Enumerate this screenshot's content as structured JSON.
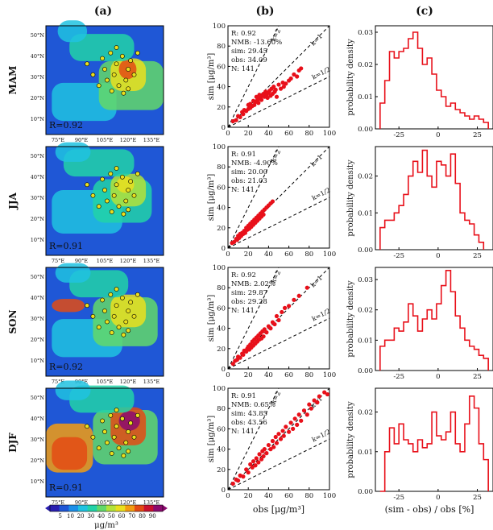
{
  "panel_labels": [
    "(a)",
    "(b)",
    "(c)"
  ],
  "colors": {
    "scatter_point": "#e8101a",
    "histogram": "#e8101a",
    "map_colors": [
      "#2a1fb0",
      "#1f57d6",
      "#1c8fe8",
      "#20c2e0",
      "#22d2a8",
      "#63d86a",
      "#b3e23a",
      "#eadf1e",
      "#f39c12",
      "#e34b14",
      "#c8102e",
      "#8b0a6e"
    ]
  },
  "map": {
    "lon_ticks": [
      "75°E",
      "90°E",
      "105°E",
      "120°E",
      "135°E"
    ],
    "lat_ticks": [
      "50°N",
      "40°N",
      "30°N",
      "20°N",
      "10°N"
    ],
    "colorbar": {
      "values": [
        5,
        10,
        20,
        30,
        40,
        50,
        60,
        70,
        80,
        90
      ],
      "unit": "μg/m³"
    }
  },
  "scatter_common": {
    "xlabel": "obs [μg/m³]",
    "ylabel": "sim [μg/m³]",
    "ticks": [
      0,
      20,
      40,
      60,
      80,
      100
    ]
  },
  "hist_common": {
    "xlabel": "(sim - obs) / obs [%]",
    "ylabel": "probability density",
    "xticks": [
      "-25",
      "0",
      "25"
    ]
  },
  "rows": [
    {
      "season": "MAM",
      "map_R": "R=0.92",
      "stats": [
        "R: 0.92",
        "NMB: -13.60%",
        "sim: 29.45",
        "obs: 34.09",
        "N: 141"
      ],
      "lines": [
        "k=2",
        "k=1",
        "k=1/2"
      ],
      "hist_yticks": [
        "0.00",
        "0.01",
        "0.02",
        "0.03"
      ]
    },
    {
      "season": "JJA",
      "map_R": "R=0.91",
      "stats": [
        "R: 0.91",
        "NMB: -4.90%",
        "sim: 20.00",
        "obs: 21.03",
        "N: 141"
      ],
      "lines": [
        "k=2",
        "k=1",
        "k=1/2"
      ],
      "hist_yticks": [
        "0.00",
        "0.01",
        "0.02"
      ]
    },
    {
      "season": "SON",
      "map_R": "R=0.92",
      "stats": [
        "R: 0.92",
        "NMB: 2.02%",
        "sim: 29.87",
        "obs: 29.28",
        "N: 141"
      ],
      "lines": [
        "k=2",
        "k=1",
        "k=1/2"
      ],
      "hist_yticks": [
        "0.00",
        "0.01",
        "0.02",
        "0.03"
      ]
    },
    {
      "season": "DJF",
      "map_R": "R=0.91",
      "stats": [
        "R: 0.91",
        "NMB: 0.65%",
        "sim: 43.85",
        "obs: 43.56",
        "N: 141"
      ],
      "lines": [
        "k=2",
        "k=1",
        "k=1/2"
      ],
      "hist_yticks": [
        "0.00",
        "0.01",
        "0.02"
      ]
    }
  ],
  "chart_data": [
    {
      "type": "scatter",
      "season": "MAM",
      "xlabel": "obs [μg/m³]",
      "ylabel": "sim [μg/m³]",
      "xlim": [
        0,
        100
      ],
      "ylim": [
        0,
        100
      ],
      "reference_lines": [
        "k=2",
        "k=1",
        "k=1/2"
      ],
      "points": [
        [
          5,
          6
        ],
        [
          8,
          7
        ],
        [
          10,
          11
        ],
        [
          12,
          10
        ],
        [
          14,
          15
        ],
        [
          15,
          13
        ],
        [
          16,
          17
        ],
        [
          18,
          16
        ],
        [
          20,
          18
        ],
        [
          20,
          22
        ],
        [
          22,
          19
        ],
        [
          22,
          23
        ],
        [
          24,
          21
        ],
        [
          25,
          26
        ],
        [
          26,
          22
        ],
        [
          27,
          25
        ],
        [
          28,
          30
        ],
        [
          29,
          27
        ],
        [
          30,
          24
        ],
        [
          30,
          28
        ],
        [
          31,
          32
        ],
        [
          32,
          29
        ],
        [
          33,
          27
        ],
        [
          34,
          31
        ],
        [
          35,
          33
        ],
        [
          36,
          30
        ],
        [
          37,
          35
        ],
        [
          38,
          32
        ],
        [
          39,
          29
        ],
        [
          40,
          34
        ],
        [
          41,
          36
        ],
        [
          42,
          31
        ],
        [
          43,
          38
        ],
        [
          44,
          33
        ],
        [
          45,
          40
        ],
        [
          46,
          35
        ],
        [
          47,
          37
        ],
        [
          48,
          30
        ],
        [
          50,
          42
        ],
        [
          52,
          38
        ],
        [
          54,
          44
        ],
        [
          55,
          40
        ],
        [
          57,
          43
        ],
        [
          60,
          46
        ],
        [
          62,
          48
        ],
        [
          65,
          52
        ],
        [
          68,
          50
        ],
        [
          70,
          56
        ],
        [
          72,
          58
        ]
      ]
    },
    {
      "type": "scatter",
      "season": "JJA",
      "xlabel": "obs [μg/m³]",
      "ylabel": "sim [μg/m³]",
      "xlim": [
        0,
        100
      ],
      "ylim": [
        0,
        100
      ],
      "reference_lines": [
        "k=2",
        "k=1",
        "k=1/2"
      ],
      "points": [
        [
          4,
          5
        ],
        [
          6,
          6
        ],
        [
          8,
          9
        ],
        [
          9,
          8
        ],
        [
          10,
          12
        ],
        [
          11,
          10
        ],
        [
          12,
          14
        ],
        [
          13,
          12
        ],
        [
          14,
          15
        ],
        [
          15,
          14
        ],
        [
          16,
          17
        ],
        [
          17,
          15
        ],
        [
          18,
          20
        ],
        [
          19,
          18
        ],
        [
          20,
          22
        ],
        [
          21,
          19
        ],
        [
          22,
          24
        ],
        [
          23,
          21
        ],
        [
          24,
          26
        ],
        [
          25,
          23
        ],
        [
          26,
          28
        ],
        [
          27,
          25
        ],
        [
          28,
          30
        ],
        [
          29,
          27
        ],
        [
          30,
          32
        ],
        [
          31,
          29
        ],
        [
          32,
          34
        ],
        [
          33,
          31
        ],
        [
          34,
          36
        ],
        [
          35,
          33
        ],
        [
          36,
          38
        ],
        [
          38,
          40
        ],
        [
          40,
          42
        ],
        [
          42,
          44
        ],
        [
          44,
          46
        ]
      ]
    },
    {
      "type": "scatter",
      "season": "SON",
      "xlabel": "obs [μg/m³]",
      "ylabel": "sim [μg/m³]",
      "xlim": [
        0,
        100
      ],
      "ylim": [
        0,
        100
      ],
      "reference_lines": [
        "k=2",
        "k=1",
        "k=1/2"
      ],
      "points": [
        [
          5,
          5
        ],
        [
          7,
          8
        ],
        [
          9,
          9
        ],
        [
          10,
          12
        ],
        [
          12,
          11
        ],
        [
          14,
          15
        ],
        [
          15,
          14
        ],
        [
          16,
          18
        ],
        [
          18,
          17
        ],
        [
          19,
          20
        ],
        [
          20,
          22
        ],
        [
          21,
          19
        ],
        [
          22,
          24
        ],
        [
          23,
          21
        ],
        [
          24,
          27
        ],
        [
          25,
          23
        ],
        [
          26,
          29
        ],
        [
          27,
          25
        ],
        [
          28,
          31
        ],
        [
          29,
          27
        ],
        [
          30,
          33
        ],
        [
          31,
          29
        ],
        [
          32,
          35
        ],
        [
          33,
          30
        ],
        [
          34,
          37
        ],
        [
          35,
          32
        ],
        [
          36,
          39
        ],
        [
          38,
          36
        ],
        [
          40,
          42
        ],
        [
          42,
          40
        ],
        [
          44,
          46
        ],
        [
          46,
          44
        ],
        [
          48,
          52
        ],
        [
          50,
          48
        ],
        [
          53,
          56
        ],
        [
          56,
          60
        ],
        [
          60,
          62
        ],
        [
          65,
          68
        ],
        [
          70,
          72
        ],
        [
          78,
          80
        ]
      ]
    },
    {
      "type": "scatter",
      "season": "DJF",
      "xlabel": "obs [μg/m³]",
      "ylabel": "sim [μg/m³]",
      "xlim": [
        0,
        100
      ],
      "ylim": [
        0,
        100
      ],
      "reference_lines": [
        "k=2",
        "k=1",
        "k=1/2"
      ],
      "points": [
        [
          5,
          6
        ],
        [
          8,
          10
        ],
        [
          10,
          9
        ],
        [
          12,
          14
        ],
        [
          15,
          13
        ],
        [
          18,
          20
        ],
        [
          20,
          17
        ],
        [
          22,
          25
        ],
        [
          24,
          22
        ],
        [
          25,
          28
        ],
        [
          27,
          24
        ],
        [
          28,
          31
        ],
        [
          30,
          27
        ],
        [
          31,
          35
        ],
        [
          33,
          30
        ],
        [
          34,
          38
        ],
        [
          35,
          33
        ],
        [
          36,
          40
        ],
        [
          38,
          36
        ],
        [
          40,
          44
        ],
        [
          42,
          40
        ],
        [
          44,
          48
        ],
        [
          45,
          42
        ],
        [
          47,
          52
        ],
        [
          48,
          46
        ],
        [
          50,
          55
        ],
        [
          52,
          50
        ],
        [
          54,
          58
        ],
        [
          55,
          53
        ],
        [
          57,
          62
        ],
        [
          60,
          57
        ],
        [
          62,
          66
        ],
        [
          64,
          60
        ],
        [
          66,
          70
        ],
        [
          68,
          64
        ],
        [
          70,
          74
        ],
        [
          72,
          68
        ],
        [
          75,
          78
        ],
        [
          78,
          74
        ],
        [
          80,
          84
        ],
        [
          82,
          80
        ],
        [
          85,
          88
        ],
        [
          88,
          86
        ],
        [
          90,
          92
        ],
        [
          95,
          96
        ],
        [
          98,
          94
        ]
      ]
    },
    {
      "type": "bar",
      "subtype": "histogram",
      "season": "MAM",
      "xlabel": "(sim - obs) / obs [%]",
      "ylabel": "probability density",
      "xlim": [
        -40,
        35
      ],
      "ylim": [
        0,
        0.032
      ],
      "bins": [
        [
          -37,
          -34,
          0.008
        ],
        [
          -34,
          -31,
          0.015
        ],
        [
          -31,
          -28,
          0.024
        ],
        [
          -28,
          -25,
          0.022
        ],
        [
          -25,
          -22,
          0.024
        ],
        [
          -22,
          -19,
          0.025
        ],
        [
          -19,
          -16,
          0.028
        ],
        [
          -16,
          -13,
          0.03
        ],
        [
          -13,
          -10,
          0.025
        ],
        [
          -10,
          -7,
          0.02
        ],
        [
          -7,
          -4,
          0.022
        ],
        [
          -4,
          -1,
          0.017
        ],
        [
          -1,
          2,
          0.012
        ],
        [
          2,
          5,
          0.01
        ],
        [
          5,
          8,
          0.007
        ],
        [
          8,
          11,
          0.008
        ],
        [
          11,
          14,
          0.006
        ],
        [
          14,
          17,
          0.005
        ],
        [
          17,
          20,
          0.004
        ],
        [
          20,
          23,
          0.003
        ],
        [
          23,
          26,
          0.004
        ],
        [
          26,
          29,
          0.003
        ],
        [
          29,
          32,
          0.002
        ]
      ]
    },
    {
      "type": "bar",
      "subtype": "histogram",
      "season": "JJA",
      "xlabel": "(sim - obs) / obs [%]",
      "ylabel": "probability density",
      "xlim": [
        -40,
        35
      ],
      "ylim": [
        0,
        0.028
      ],
      "bins": [
        [
          -37,
          -34,
          0.006
        ],
        [
          -34,
          -31,
          0.008
        ],
        [
          -31,
          -28,
          0.008
        ],
        [
          -28,
          -25,
          0.01
        ],
        [
          -25,
          -22,
          0.012
        ],
        [
          -22,
          -19,
          0.015
        ],
        [
          -19,
          -16,
          0.02
        ],
        [
          -16,
          -13,
          0.024
        ],
        [
          -13,
          -10,
          0.021
        ],
        [
          -10,
          -7,
          0.027
        ],
        [
          -7,
          -4,
          0.02
        ],
        [
          -4,
          -1,
          0.017
        ],
        [
          -1,
          2,
          0.024
        ],
        [
          2,
          5,
          0.023
        ],
        [
          5,
          8,
          0.02
        ],
        [
          8,
          11,
          0.026
        ],
        [
          11,
          14,
          0.018
        ],
        [
          14,
          17,
          0.01
        ],
        [
          17,
          20,
          0.008
        ],
        [
          20,
          23,
          0.007
        ],
        [
          23,
          26,
          0.004
        ],
        [
          26,
          29,
          0.002
        ]
      ]
    },
    {
      "type": "bar",
      "subtype": "histogram",
      "season": "SON",
      "xlabel": "(sim - obs) / obs [%]",
      "ylabel": "probability density",
      "xlim": [
        -40,
        35
      ],
      "ylim": [
        0,
        0.034
      ],
      "bins": [
        [
          -37,
          -34,
          0.008
        ],
        [
          -34,
          -31,
          0.01
        ],
        [
          -31,
          -28,
          0.01
        ],
        [
          -28,
          -25,
          0.014
        ],
        [
          -25,
          -22,
          0.013
        ],
        [
          -22,
          -19,
          0.016
        ],
        [
          -19,
          -16,
          0.022
        ],
        [
          -16,
          -13,
          0.018
        ],
        [
          -13,
          -10,
          0.013
        ],
        [
          -10,
          -7,
          0.017
        ],
        [
          -7,
          -4,
          0.02
        ],
        [
          -4,
          -1,
          0.017
        ],
        [
          -1,
          2,
          0.022
        ],
        [
          2,
          5,
          0.028
        ],
        [
          5,
          8,
          0.033
        ],
        [
          8,
          11,
          0.026
        ],
        [
          11,
          14,
          0.018
        ],
        [
          14,
          17,
          0.014
        ],
        [
          17,
          20,
          0.01
        ],
        [
          20,
          23,
          0.008
        ],
        [
          23,
          26,
          0.007
        ],
        [
          26,
          29,
          0.005
        ],
        [
          29,
          32,
          0.004
        ]
      ]
    },
    {
      "type": "bar",
      "subtype": "histogram",
      "season": "DJF",
      "xlabel": "(sim - obs) / obs [%]",
      "ylabel": "probability density",
      "xlim": [
        -40,
        35
      ],
      "ylim": [
        0,
        0.026
      ],
      "bins": [
        [
          -37,
          -34,
          0.0
        ],
        [
          -34,
          -31,
          0.01
        ],
        [
          -31,
          -28,
          0.016
        ],
        [
          -28,
          -25,
          0.012
        ],
        [
          -25,
          -22,
          0.017
        ],
        [
          -22,
          -19,
          0.013
        ],
        [
          -19,
          -16,
          0.012
        ],
        [
          -16,
          -13,
          0.01
        ],
        [
          -13,
          -10,
          0.013
        ],
        [
          -10,
          -7,
          0.011
        ],
        [
          -7,
          -4,
          0.012
        ],
        [
          -4,
          -1,
          0.02
        ],
        [
          -1,
          2,
          0.014
        ],
        [
          2,
          5,
          0.013
        ],
        [
          5,
          8,
          0.015
        ],
        [
          8,
          11,
          0.02
        ],
        [
          11,
          14,
          0.012
        ],
        [
          14,
          17,
          0.01
        ],
        [
          17,
          20,
          0.017
        ],
        [
          20,
          23,
          0.024
        ],
        [
          23,
          26,
          0.021
        ],
        [
          26,
          29,
          0.012
        ],
        [
          29,
          32,
          0.008
        ]
      ]
    }
  ]
}
